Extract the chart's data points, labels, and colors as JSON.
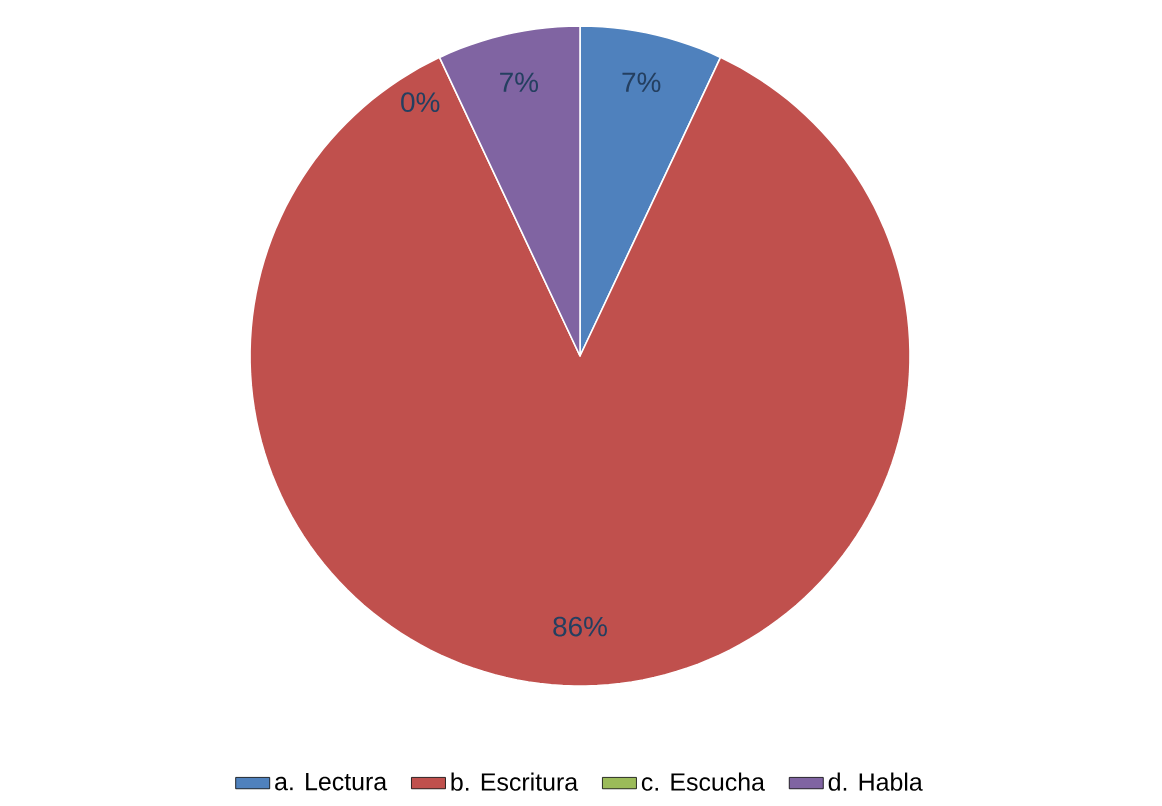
{
  "chart_data": {
    "type": "pie",
    "categories": [
      "a. Lectura",
      "b. Escritura",
      "c. Escucha",
      "d. Habla"
    ],
    "values": [
      7,
      86,
      0,
      7
    ],
    "value_labels": [
      "7%",
      "86%",
      "0%",
      "7%"
    ],
    "colors": [
      "#4f81bd",
      "#c0504d",
      "#9bbb59",
      "#8064a2"
    ],
    "legend": "bottom"
  }
}
